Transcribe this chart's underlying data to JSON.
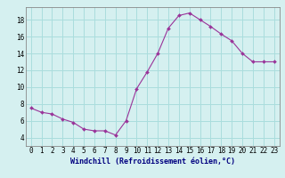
{
  "x": [
    0,
    1,
    2,
    3,
    4,
    5,
    6,
    7,
    8,
    9,
    10,
    11,
    12,
    13,
    14,
    15,
    16,
    17,
    18,
    19,
    20,
    21,
    22,
    23
  ],
  "y": [
    7.5,
    7.0,
    6.8,
    6.2,
    5.8,
    5.0,
    4.8,
    4.8,
    4.3,
    6.0,
    9.8,
    11.8,
    14.0,
    17.0,
    18.5,
    18.8,
    18.0,
    17.2,
    16.3,
    15.5,
    14.0,
    13.0,
    13.0,
    13.0
  ],
  "line_color": "#993399",
  "marker_color": "#993399",
  "bg_color": "#d5f0f0",
  "grid_color": "#aadddd",
  "xlabel": "Windchill (Refroidissement éolien,°C)",
  "xlabel_color": "#000080",
  "xlabel_fontsize": 6.0,
  "tick_fontsize": 5.5,
  "ylim": [
    3,
    19.5
  ],
  "yticks": [
    4,
    6,
    8,
    10,
    12,
    14,
    16,
    18
  ],
  "xticks": [
    0,
    1,
    2,
    3,
    4,
    5,
    6,
    7,
    8,
    9,
    10,
    11,
    12,
    13,
    14,
    15,
    16,
    17,
    18,
    19,
    20,
    21,
    22,
    23
  ],
  "figwidth": 3.2,
  "figheight": 2.0,
  "dpi": 100
}
